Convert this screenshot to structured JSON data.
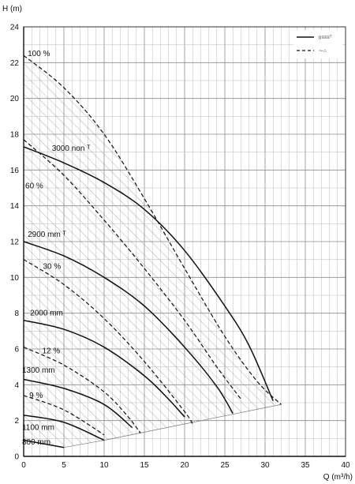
{
  "chart_data": {
    "type": "line",
    "xlabel": "Q (m³/h)",
    "ylabel": "H (m)",
    "xlim": [
      0,
      40
    ],
    "ylim": [
      0,
      24
    ],
    "x_ticks": [
      0,
      5,
      10,
      15,
      20,
      25,
      30,
      35,
      40
    ],
    "y_ticks": [
      0,
      2,
      4,
      6,
      8,
      10,
      12,
      14,
      16,
      18,
      20,
      22,
      24
    ],
    "x_tick_labels": [
      "0",
      "5",
      "10",
      "15",
      "20",
      "25",
      "30",
      "35",
      "40"
    ],
    "y_tick_labels": [
      "0",
      "2",
      "4",
      "6",
      "8",
      "10",
      "12",
      "14",
      "16",
      "18",
      "20",
      "22",
      "24"
    ],
    "grid": true,
    "legend_position": "top-right",
    "legend": [
      {
        "style": "solid",
        "label": "ṉ≡≡≡ᵀ"
      },
      {
        "style": "dashed",
        "label": "⁓⌂"
      }
    ],
    "series": [
      {
        "style": "solid",
        "label": "3000 non",
        "x": [
          0,
          5,
          10,
          15,
          20,
          25,
          28,
          31
        ],
        "y": [
          17.3,
          16.4,
          15.3,
          13.8,
          11.5,
          8.4,
          6.2,
          3.1
        ]
      },
      {
        "style": "solid",
        "label": "2900 mm",
        "x": [
          0,
          5,
          10,
          15,
          20,
          24,
          26
        ],
        "y": [
          12.0,
          11.2,
          10.0,
          8.4,
          6.1,
          3.9,
          2.4
        ]
      },
      {
        "style": "solid",
        "label": "2000 mm",
        "x": [
          0,
          5,
          10,
          15,
          18,
          20
        ],
        "y": [
          7.6,
          7.1,
          6.1,
          4.5,
          3.2,
          2.2
        ]
      },
      {
        "style": "solid",
        "label": "1300 mm",
        "x": [
          0,
          5,
          10,
          13.5
        ],
        "y": [
          4.3,
          3.8,
          2.9,
          1.6
        ]
      },
      {
        "style": "solid",
        "label": "1100 mm",
        "x": [
          0,
          5,
          10
        ],
        "y": [
          2.3,
          1.9,
          0.9
        ]
      },
      {
        "style": "solid",
        "label": "800 mm",
        "x": [
          0,
          5
        ],
        "y": [
          0.9,
          0.5
        ]
      },
      {
        "style": "dashed",
        "label": "100 %",
        "x": [
          0,
          5,
          10,
          15,
          20,
          25,
          29,
          32
        ],
        "y": [
          22.4,
          20.6,
          18.0,
          14.4,
          10.5,
          6.7,
          4.2,
          2.9
        ]
      },
      {
        "style": "dashed",
        "label": "60 %",
        "x": [
          0,
          5,
          10,
          15,
          20,
          24,
          27
        ],
        "y": [
          17.7,
          15.7,
          13.2,
          10.5,
          7.6,
          5.0,
          3.2
        ]
      },
      {
        "style": "dashed",
        "label": "30 %",
        "x": [
          0,
          5,
          10,
          15,
          20,
          21
        ],
        "y": [
          11.0,
          9.6,
          7.7,
          5.3,
          2.5,
          1.8
        ]
      },
      {
        "style": "dashed",
        "label": "12 %",
        "x": [
          0,
          5,
          10,
          13,
          14.5
        ],
        "y": [
          6.1,
          5.1,
          3.6,
          2.2,
          1.3
        ]
      },
      {
        "style": "dashed",
        "label": "9 %",
        "x": [
          0,
          5,
          10
        ],
        "y": [
          3.4,
          2.6,
          1.2
        ]
      }
    ],
    "boundary": {
      "x": [
        5,
        10,
        32
      ],
      "y": [
        0.5,
        0.9,
        2.9
      ]
    },
    "annotations": [
      {
        "text": "100 %",
        "x": 0.5,
        "y": 22.5
      },
      {
        "text": "3000 non ᵀ",
        "x": 3.5,
        "y": 17.2
      },
      {
        "text": "60 %",
        "x": 0.2,
        "y": 15.1
      },
      {
        "text": "2900 mm ᵀ",
        "x": 0.5,
        "y": 12.4
      },
      {
        "text": "30 %",
        "x": 2.4,
        "y": 10.6
      },
      {
        "text": "2000 mm",
        "x": 0.8,
        "y": 8.0
      },
      {
        "text": "12 %",
        "x": 2.3,
        "y": 5.9
      },
      {
        "text": "1300 mm",
        "x": -0.2,
        "y": 4.8
      },
      {
        "text": "9 %",
        "x": 0.7,
        "y": 3.4
      },
      {
        "text": "1100 mm",
        "x": -0.2,
        "y": 1.6
      },
      {
        "text": "800 mm",
        "x": -0.2,
        "y": 0.8
      }
    ]
  }
}
